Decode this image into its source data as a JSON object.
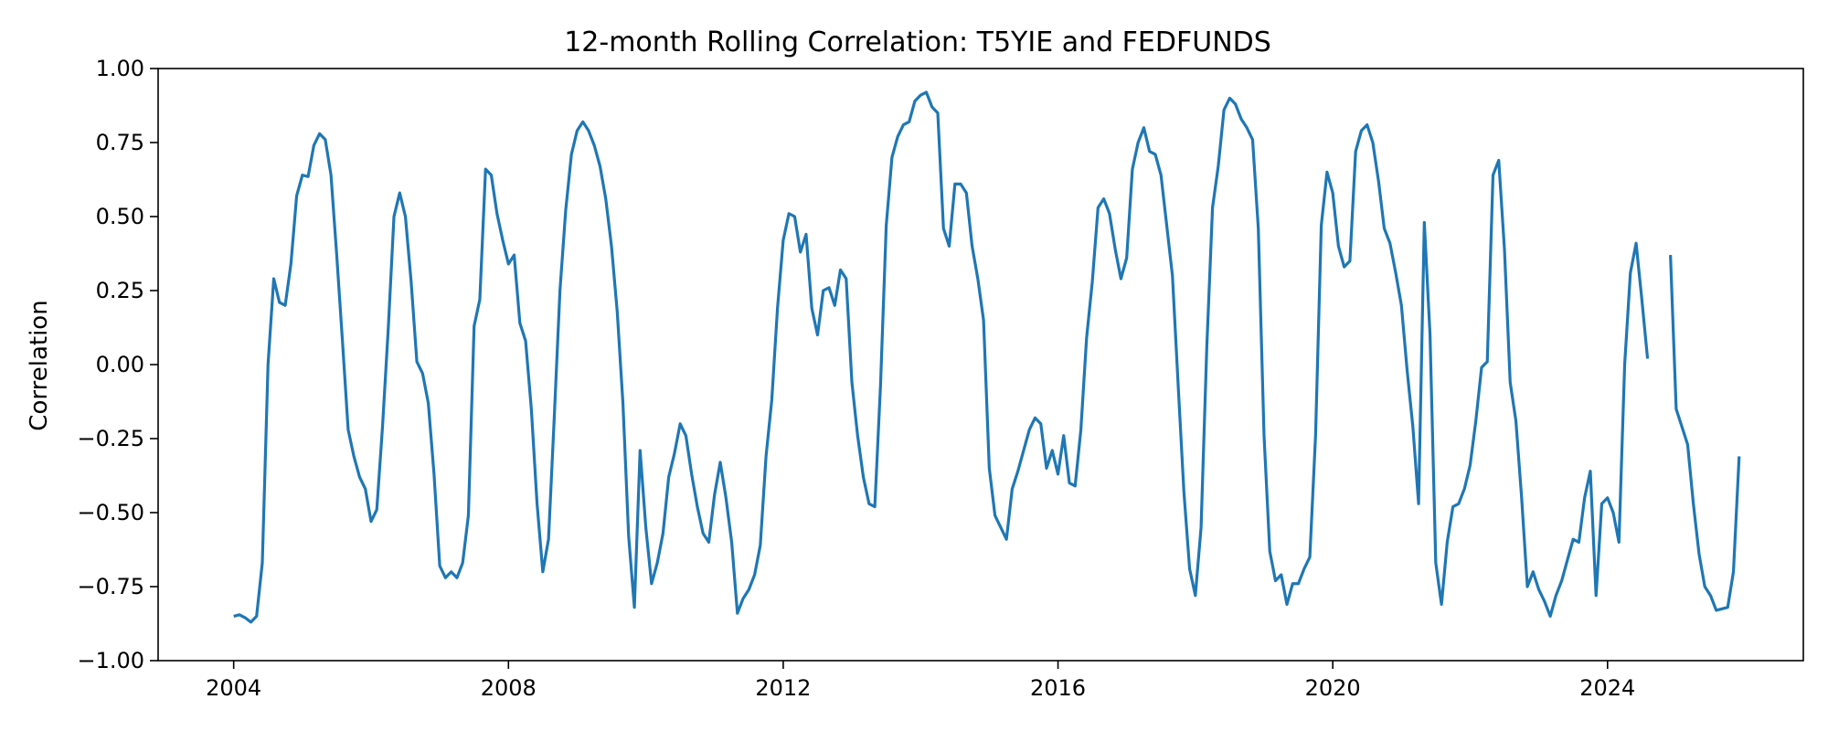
{
  "chart_data": {
    "type": "line",
    "title": "12-month Rolling Correlation: T5YIE and FEDFUNDS",
    "xlabel": "",
    "ylabel": "Correlation",
    "xlim": [
      2002.9,
      2026.85
    ],
    "ylim": [
      -1.0,
      1.0
    ],
    "x_ticks": [
      2004,
      2008,
      2012,
      2016,
      2020,
      2024
    ],
    "x_tick_labels": [
      "2004",
      "2008",
      "2012",
      "2016",
      "2020",
      "2024"
    ],
    "y_ticks": [
      -1.0,
      -0.75,
      -0.5,
      -0.25,
      0.0,
      0.25,
      0.5,
      0.75,
      1.0
    ],
    "y_tick_labels": [
      "−1.00",
      "−0.75",
      "−0.50",
      "−0.25",
      "0.00",
      "0.25",
      "0.50",
      "0.75",
      "1.00"
    ],
    "grid": false,
    "legend": false,
    "color": "#1f77b4",
    "series": [
      {
        "x_start": 2004.0,
        "x_step": 0.08333,
        "values": [
          -0.85,
          -0.845,
          -0.855,
          -0.87,
          -0.85,
          -0.67,
          -0.0,
          0.29,
          0.21,
          0.2,
          0.34,
          0.57,
          0.64,
          0.635,
          0.74,
          0.78,
          0.76,
          0.64,
          0.37,
          0.08,
          -0.22,
          -0.31,
          -0.38,
          -0.42,
          -0.53,
          -0.49,
          -0.21,
          0.12,
          0.5,
          0.58,
          0.5,
          0.28,
          0.01,
          -0.03,
          -0.13,
          -0.37,
          -0.68,
          -0.72,
          -0.7,
          -0.72,
          -0.67,
          -0.51,
          0.13,
          0.22,
          0.66,
          0.64,
          0.51,
          0.42,
          0.34,
          0.37,
          0.14,
          0.08,
          -0.15,
          -0.47,
          -0.7,
          -0.59,
          -0.18,
          0.25,
          0.52,
          0.71,
          0.79,
          0.82,
          0.79,
          0.74,
          0.67,
          0.56,
          0.4,
          0.18,
          -0.13,
          -0.58,
          -0.82,
          -0.29,
          -0.55,
          -0.74,
          -0.67,
          -0.57,
          -0.38,
          -0.3,
          -0.2,
          -0.24,
          -0.37,
          -0.48,
          -0.57,
          -0.6,
          -0.44,
          -0.33,
          -0.45,
          -0.6,
          -0.84,
          -0.79,
          -0.76,
          -0.71,
          -0.61,
          -0.31,
          -0.12,
          0.19,
          0.42,
          0.51,
          0.5,
          0.38,
          0.44,
          0.19,
          0.1,
          0.25,
          0.26,
          0.2,
          0.32,
          0.29,
          -0.06,
          -0.24,
          -0.38,
          -0.47,
          -0.48,
          -0.07,
          0.47,
          0.7,
          0.77,
          0.81,
          0.82,
          0.89,
          0.91,
          0.92,
          0.87,
          0.85,
          0.46,
          0.4,
          0.61,
          0.61,
          0.58,
          0.4,
          0.29,
          0.15,
          -0.35,
          -0.51,
          -0.55,
          -0.59,
          -0.42,
          -0.36,
          -0.29,
          -0.22,
          -0.18,
          -0.2,
          -0.35,
          -0.29,
          -0.37,
          -0.24,
          -0.4,
          -0.41,
          -0.22,
          0.09,
          0.28,
          0.53,
          0.56,
          0.51,
          0.39,
          0.29,
          0.36,
          0.66,
          0.75,
          0.8,
          0.72,
          0.71,
          0.64,
          0.47,
          0.3,
          -0.07,
          -0.43,
          -0.69,
          -0.78,
          -0.55,
          0.06,
          0.53,
          0.67,
          0.86,
          0.9,
          0.88,
          0.83,
          0.8,
          0.76,
          0.46,
          -0.24,
          -0.63,
          -0.73,
          -0.71,
          -0.81,
          -0.74,
          -0.74,
          -0.69,
          -0.65,
          -0.24,
          0.47,
          0.65,
          0.58,
          0.4,
          0.33,
          0.35,
          0.72,
          0.79,
          0.81,
          0.75,
          0.62,
          0.46,
          0.41,
          0.31,
          0.2,
          -0.02,
          -0.21,
          -0.47,
          0.48,
          0.1,
          -0.67,
          -0.81,
          -0.6,
          -0.48,
          -0.47,
          -0.42,
          -0.34,
          -0.19,
          -0.01,
          0.01,
          0.64,
          0.69,
          0.39,
          -0.06,
          -0.19,
          -0.45,
          -0.75,
          -0.7,
          -0.76,
          -0.8,
          -0.85,
          -0.78,
          -0.73,
          -0.66,
          -0.59,
          -0.6,
          -0.45,
          -0.36,
          -0.78,
          -0.47,
          -0.45,
          -0.5,
          -0.6,
          -0.0,
          0.31,
          0.41,
          0.22,
          0.02,
          null,
          null,
          null,
          0.37,
          -0.15,
          -0.21,
          -0.27,
          -0.47,
          -0.64,
          -0.75,
          -0.78,
          -0.83,
          -0.825,
          -0.82,
          -0.7,
          -0.31
        ]
      }
    ]
  }
}
